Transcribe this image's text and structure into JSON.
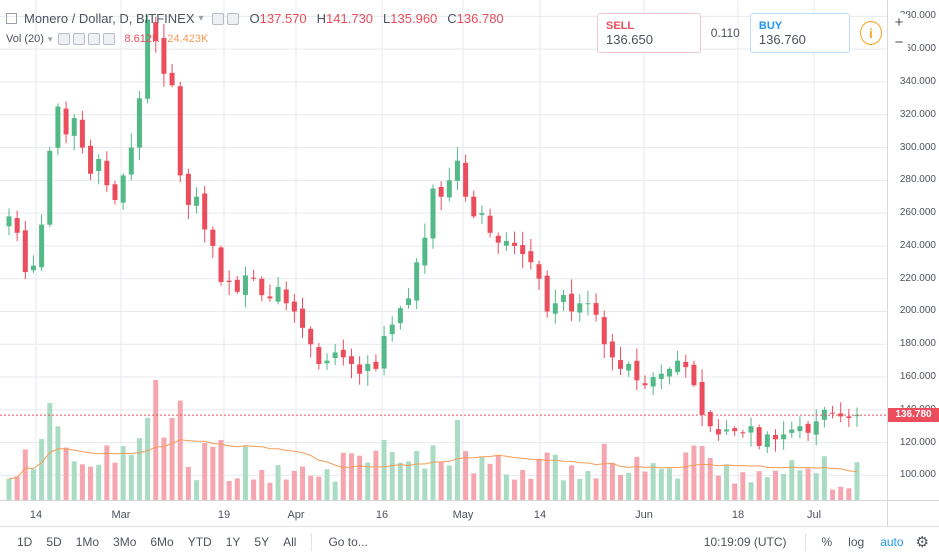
{
  "legend": {
    "symbol": "Monero / Dollar, D, BITFINEX",
    "o_label": "O",
    "o_value": "137.570",
    "h_label": "H",
    "h_value": "141.730",
    "l_label": "L",
    "l_value": "135.960",
    "c_label": "C",
    "c_value": "136.780",
    "vol_label": "Vol (20)",
    "vol_value": "8.612K",
    "vol_ma_value": "24.423K"
  },
  "trade": {
    "sell_label": "SELL",
    "sell_price": "136.650",
    "spread": "0.110",
    "buy_label": "BUY",
    "buy_price": "136.760"
  },
  "price_axis": {
    "ticks": [
      "100.000",
      "120.000",
      "140.000",
      "160.000",
      "180.000",
      "200.000",
      "220.000",
      "240.000",
      "260.000",
      "280.000",
      "300.000",
      "320.000",
      "340.000",
      "360.000",
      "380.000"
    ],
    "current_price": "136.780"
  },
  "time_axis": {
    "labels": [
      "14",
      "Mar",
      "19",
      "Apr",
      "16",
      "May",
      "14",
      "Jun",
      "18",
      "Jul"
    ]
  },
  "bottom_bar": {
    "timeframes": [
      "1D",
      "5D",
      "1Mo",
      "3Mo",
      "6Mo",
      "YTD",
      "1Y",
      "5Y",
      "All"
    ],
    "goto": "Go to...",
    "clock": "10:19:09 (UTC)",
    "percent": "%",
    "log": "log",
    "auto": "auto"
  },
  "colors": {
    "up": "#53b987",
    "down": "#eb4d5c",
    "vol_up": "#a9dcc3",
    "vol_down": "#f5a6ae",
    "ma": "#f79b55",
    "accent": "#2196f3",
    "grid": "#e6e9ef"
  },
  "chart_data": {
    "type": "candlestick",
    "price_range": [
      85,
      390
    ],
    "closes": [
      258,
      248,
      224,
      228,
      253,
      298,
      325,
      308,
      318,
      300,
      284,
      293,
      277,
      268,
      283,
      300,
      330,
      378,
      365,
      345,
      338,
      283,
      265,
      270,
      250,
      240,
      218,
      218,
      212,
      222,
      220,
      210,
      208,
      215,
      205,
      200,
      190,
      180,
      168,
      170,
      175,
      172,
      168,
      162,
      168,
      165,
      185,
      192,
      202,
      208,
      230,
      245,
      275,
      270,
      280,
      292,
      270,
      258,
      260,
      248,
      242,
      243,
      240,
      235,
      230,
      220,
      200,
      205,
      210,
      200,
      205,
      205,
      198,
      180,
      172,
      165,
      168,
      158,
      155,
      160,
      162,
      165,
      170,
      166,
      155,
      137,
      130,
      125,
      128,
      127,
      126,
      130,
      118,
      125,
      122,
      125,
      128,
      130,
      126,
      133,
      140,
      138,
      136,
      135,
      137
    ]
  }
}
